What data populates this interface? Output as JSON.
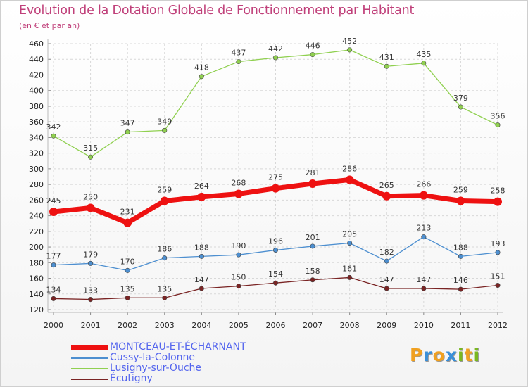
{
  "title": "Evolution de la Dotation Globale de Fonctionnement par Habitant",
  "subtitle": "(en € et par an)",
  "logo": {
    "text": "Proxiti",
    "colors": [
      "#f0a020",
      "#3a8fd8",
      "#f0a020",
      "#3a8fd8",
      "#7ab820",
      "#f0a020",
      "#7ab820"
    ]
  },
  "chart_data": {
    "type": "line",
    "title": "Evolution de la Dotation Globale de Fonctionnement par Habitant",
    "subtitle": "(en € et par an)",
    "x": [
      "2000",
      "2001",
      "2002",
      "2003",
      "2004",
      "2005",
      "2006",
      "2007",
      "2008",
      "2009",
      "2010",
      "2011",
      "2012"
    ],
    "ylim": [
      120,
      460
    ],
    "yticks": [
      120,
      140,
      160,
      180,
      200,
      220,
      240,
      260,
      280,
      300,
      320,
      340,
      360,
      380,
      400,
      420,
      440,
      460
    ],
    "grid": true,
    "legend_position": "bottom-left",
    "series": [
      {
        "name": "MONTCEAU-ET-ÉCHARNANT",
        "color": "#ee1111",
        "thick": true,
        "values": [
          245,
          250,
          231,
          259,
          264,
          268,
          275,
          281,
          286,
          265,
          266,
          259,
          258
        ]
      },
      {
        "name": "Cussy-la-Colonne",
        "color": "#4d8fd0",
        "thick": false,
        "values": [
          177,
          179,
          170,
          186,
          188,
          190,
          196,
          201,
          205,
          182,
          213,
          188,
          193
        ]
      },
      {
        "name": "Lusigny-sur-Ouche",
        "color": "#90d050",
        "thick": false,
        "values": [
          342,
          315,
          347,
          349,
          418,
          437,
          442,
          446,
          452,
          431,
          435,
          379,
          356
        ]
      },
      {
        "name": "Écutigny",
        "color": "#7a2424",
        "thick": false,
        "values": [
          134,
          133,
          135,
          135,
          147,
          150,
          154,
          158,
          161,
          147,
          147,
          146,
          151
        ]
      }
    ]
  }
}
